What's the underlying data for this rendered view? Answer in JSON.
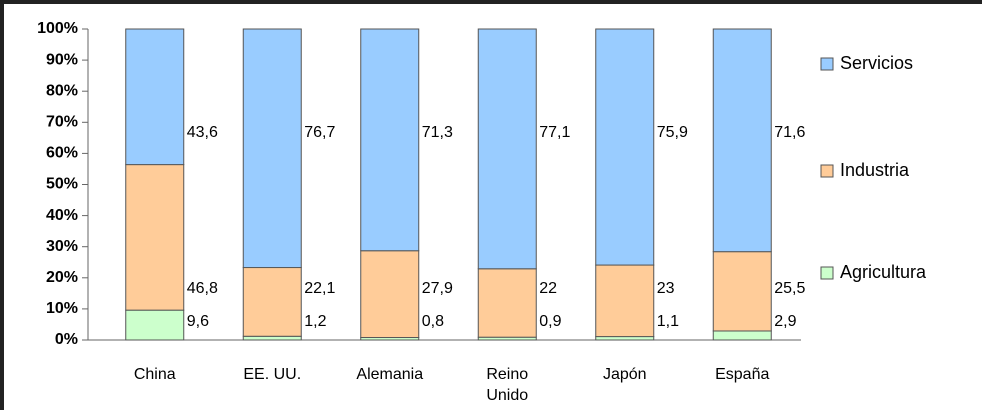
{
  "chart_data": {
    "type": "stacked_bar",
    "categories": [
      "China",
      "EE. UU.",
      "Alemania",
      "Reino Unido",
      "Japón",
      "España"
    ],
    "series": [
      {
        "name": "Agricultura",
        "color": "#ccffcc",
        "values": [
          9.6,
          1.2,
          0.8,
          0.9,
          1.1,
          2.9
        ],
        "value_labels": [
          "9,6",
          "1,2",
          "0,8",
          "0,9",
          "1,1",
          "2,9"
        ]
      },
      {
        "name": "Industria",
        "color": "#ffcc99",
        "values": [
          46.8,
          22.1,
          27.9,
          22,
          23,
          25.5
        ],
        "value_labels": [
          "46,8",
          "22,1",
          "27,9",
          "22",
          "23",
          "25,5"
        ]
      },
      {
        "name": "Servicios",
        "color": "#99ccff",
        "values": [
          43.6,
          76.7,
          71.3,
          77.1,
          75.9,
          71.6
        ],
        "value_labels": [
          "43,6",
          "76,7",
          "71,3",
          "77,1",
          "75,9",
          "71,6"
        ]
      }
    ],
    "ylim": [
      0,
      100
    ],
    "yticks": [
      {
        "value": 0,
        "label": "0%"
      },
      {
        "value": 10,
        "label": "10%"
      },
      {
        "value": 20,
        "label": "20%"
      },
      {
        "value": 30,
        "label": "30%"
      },
      {
        "value": 40,
        "label": "40%"
      },
      {
        "value": 50,
        "label": "50%"
      },
      {
        "value": 60,
        "label": "60%"
      },
      {
        "value": 70,
        "label": "70%"
      },
      {
        "value": 80,
        "label": "80%"
      },
      {
        "value": 90,
        "label": "90%"
      },
      {
        "value": 100,
        "label": "100%"
      }
    ],
    "grid": false,
    "legend": "right"
  }
}
